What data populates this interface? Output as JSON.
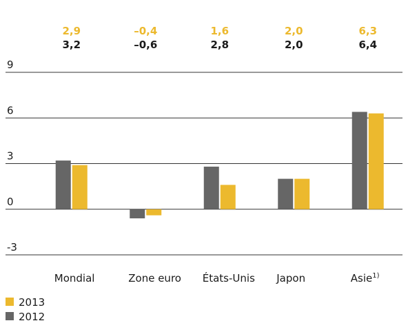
{
  "chart_data": {
    "type": "bar",
    "categories": [
      "Mondial",
      "Zone euro",
      "États-Unis",
      "Japon",
      "Asie"
    ],
    "footnote_marks": [
      null,
      null,
      null,
      null,
      "1)"
    ],
    "series": [
      {
        "name": "2013",
        "color": "#ecb92e",
        "values": [
          2.9,
          -0.4,
          1.6,
          2.0,
          6.3
        ],
        "value_labels": [
          "2,9",
          "–0,4",
          "1,6",
          "2,0",
          "6,3"
        ]
      },
      {
        "name": "2012",
        "color": "#666666",
        "values": [
          3.2,
          -0.6,
          2.8,
          2.0,
          6.4
        ],
        "value_labels": [
          "3,2",
          "–0,6",
          "2,8",
          "2,0",
          "6,4"
        ]
      }
    ],
    "ylim": [
      -3,
      9
    ],
    "yticks": [
      -3,
      0,
      3,
      6,
      9
    ],
    "grid": true,
    "legend": "bottom-left"
  }
}
